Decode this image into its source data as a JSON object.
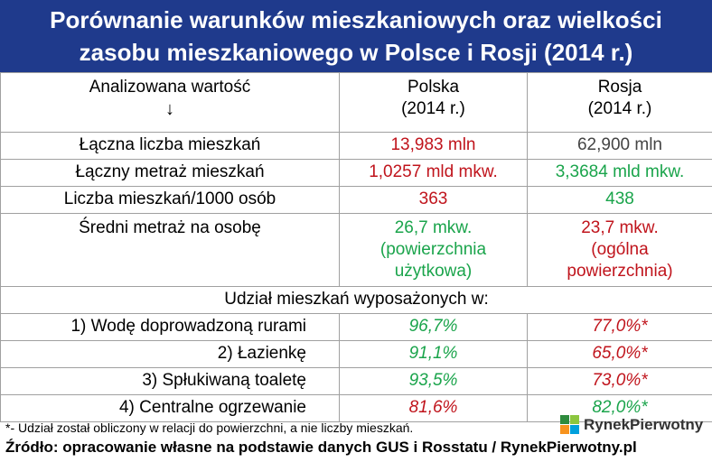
{
  "title": {
    "line1": "Porównanie warunków mieszkaniowych oraz wielkości",
    "line2": "zasobu mieszkaniowego w Polsce i Rosji (2014 r.)"
  },
  "header": {
    "col1_label": "Analizowana wartość",
    "col1_arrow": "↓",
    "col2_line1": "Polska",
    "col2_line2": "(2014 r.)",
    "col3_line1": "Rosja",
    "col3_line2": "(2014 r.)"
  },
  "rows": [
    {
      "label": "Łączna liczba mieszkań",
      "polska": "13,983 mln",
      "rosja": "62,900 mln"
    },
    {
      "label": "Łączny metraż mieszkań",
      "polska": "1,0257 mld mkw.",
      "rosja": "3,3684 mld mkw."
    },
    {
      "label": "Liczba mieszkań/1000 osób",
      "polska": "363",
      "rosja": "438"
    },
    {
      "label": "Średni metraż na osobę",
      "polska_l1": "26,7 mkw.",
      "polska_l2": "(powierzchnia",
      "polska_l3": "użytkowa)",
      "rosja_l1": "23,7 mkw.",
      "rosja_l2": "(ogólna",
      "rosja_l3": "powierzchnia)"
    }
  ],
  "group_label": "Udział mieszkań wyposażonych w:",
  "items": [
    {
      "label": "1) Wodę doprowadzoną rurami",
      "polska": "96,7%",
      "rosja": "77,0%*"
    },
    {
      "label": "2) Łazienkę",
      "polska": "91,1%",
      "rosja": "65,0%*"
    },
    {
      "label": "3) Spłukiwaną toaletę",
      "polska": "93,5%",
      "rosja": "73,0%*"
    },
    {
      "label": "4) Centralne ogrzewanie",
      "polska": "81,6%",
      "rosja": "82,0%*"
    }
  ],
  "footnote": "*- Udział został obliczony w relacji do powierzchni, a nie liczby mieszkań.",
  "source": "Źródło: opracowanie własne na podstawie danych GUS i Rosstatu / RynekPierwotny.pl",
  "logo": {
    "text": "RynekPierwotny"
  },
  "colors": {
    "title_bg": "#1f3a8c",
    "red": "#c0141c",
    "green": "#1aa44b"
  }
}
